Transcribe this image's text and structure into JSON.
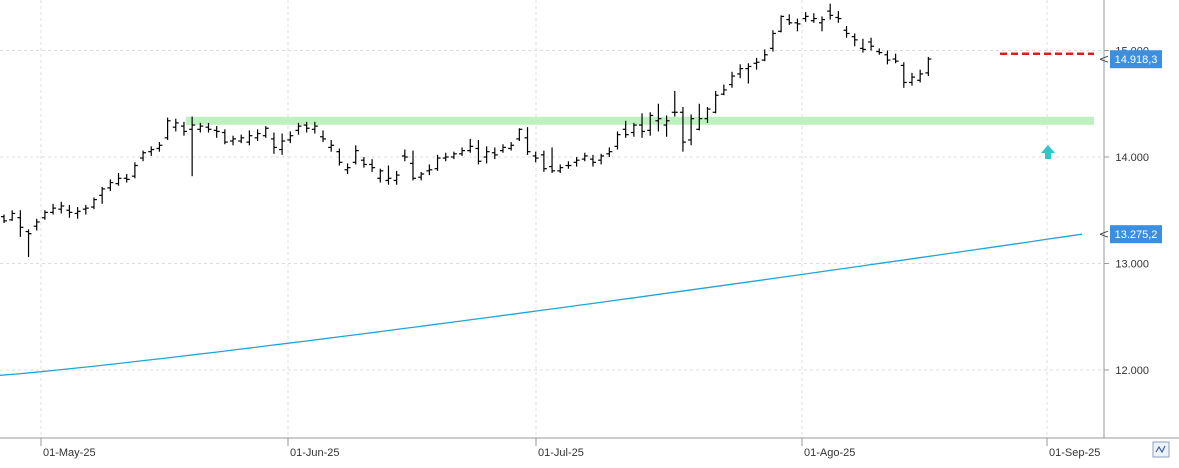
{
  "chart_data": {
    "type": "ohlc",
    "title": "",
    "xlabel": "",
    "ylabel": "",
    "ylim": [
      11300,
      15600
    ],
    "grid": true,
    "x_tick_labels": [
      "01-May-25",
      "01-Jun-25",
      "01-Jul-25",
      "01-Ago-25",
      "01-Sep-25"
    ],
    "y_tick_values": [
      12000,
      13000,
      14000,
      15000
    ],
    "y_tick_labels": [
      "12.000",
      "13.000",
      "14.000",
      "15.000"
    ],
    "price_badges": [
      {
        "label": "14.918,3",
        "value": 14918.3,
        "color": "#3b8fe0"
      },
      {
        "label": "13.275,2",
        "value": 13275.2,
        "color": "#3b8fe0"
      }
    ],
    "series": [
      {
        "type": "ohlc",
        "color": "#000000",
        "bars": [
          [
            13440,
            13460,
            13380,
            13400
          ],
          [
            13410,
            13500,
            13400,
            13470
          ],
          [
            13430,
            13500,
            13250,
            13340
          ],
          [
            13300,
            13320,
            13060,
            13280
          ],
          [
            13350,
            13420,
            13310,
            13390
          ],
          [
            13430,
            13500,
            13410,
            13480
          ],
          [
            13480,
            13560,
            13460,
            13520
          ],
          [
            13510,
            13580,
            13470,
            13540
          ],
          [
            13500,
            13550,
            13430,
            13480
          ],
          [
            13470,
            13530,
            13420,
            13490
          ],
          [
            13510,
            13550,
            13460,
            13520
          ],
          [
            13530,
            13620,
            13510,
            13600
          ],
          [
            13640,
            13720,
            13560,
            13700
          ],
          [
            13710,
            13790,
            13680,
            13760
          ],
          [
            13750,
            13850,
            13730,
            13800
          ],
          [
            13800,
            13840,
            13760,
            13790
          ],
          [
            13820,
            13950,
            13800,
            13920
          ],
          [
            13990,
            14060,
            13960,
            14040
          ],
          [
            14050,
            14100,
            14010,
            14070
          ],
          [
            14080,
            14140,
            14050,
            14110
          ],
          [
            14180,
            14370,
            14160,
            14340
          ],
          [
            14280,
            14360,
            14240,
            14320
          ],
          [
            14290,
            14330,
            14200,
            14240
          ],
          [
            14260,
            14380,
            13820,
            14300
          ],
          [
            14260,
            14320,
            14230,
            14290
          ],
          [
            14280,
            14320,
            14230,
            14260
          ],
          [
            14250,
            14290,
            14180,
            14240
          ],
          [
            14230,
            14260,
            14120,
            14140
          ],
          [
            14150,
            14200,
            14110,
            14170
          ],
          [
            14150,
            14210,
            14130,
            14180
          ],
          [
            14140,
            14250,
            14110,
            14200
          ],
          [
            14180,
            14260,
            14150,
            14220
          ],
          [
            14200,
            14290,
            14180,
            14270
          ],
          [
            14170,
            14230,
            14030,
            14090
          ],
          [
            14070,
            14220,
            14020,
            14150
          ],
          [
            14160,
            14240,
            14130,
            14200
          ],
          [
            14250,
            14320,
            14210,
            14290
          ],
          [
            14300,
            14330,
            14230,
            14270
          ],
          [
            14260,
            14330,
            14220,
            14290
          ],
          [
            14190,
            14250,
            14140,
            14170
          ],
          [
            14090,
            14160,
            14050,
            14110
          ],
          [
            14050,
            14080,
            13920,
            13950
          ],
          [
            13880,
            13940,
            13840,
            13900
          ],
          [
            13950,
            14110,
            13930,
            14060
          ],
          [
            13970,
            14000,
            13900,
            13930
          ],
          [
            13930,
            13980,
            13860,
            13900
          ],
          [
            13800,
            13890,
            13760,
            13870
          ],
          [
            13780,
            13920,
            13740,
            13800
          ],
          [
            13780,
            13870,
            13740,
            13830
          ],
          [
            14010,
            14070,
            13960,
            14000
          ],
          [
            13940,
            14060,
            13780,
            13800
          ],
          [
            13810,
            13860,
            13780,
            13840
          ],
          [
            13870,
            13930,
            13830,
            13880
          ],
          [
            13890,
            14020,
            13870,
            13990
          ],
          [
            13990,
            14040,
            13960,
            14000
          ],
          [
            14000,
            14050,
            13980,
            14030
          ],
          [
            14030,
            14090,
            14010,
            14060
          ],
          [
            14060,
            14170,
            14040,
            14100
          ],
          [
            14080,
            14160,
            13930,
            13960
          ],
          [
            14000,
            14100,
            13940,
            14050
          ],
          [
            14040,
            14090,
            13980,
            14020
          ],
          [
            14060,
            14120,
            14040,
            14090
          ],
          [
            14080,
            14140,
            14060,
            14110
          ],
          [
            14170,
            14270,
            14150,
            14260
          ],
          [
            14180,
            14280,
            14020,
            14050
          ],
          [
            14010,
            14050,
            13950,
            13990
          ],
          [
            14020,
            14060,
            13860,
            13890
          ],
          [
            13910,
            14090,
            13850,
            13870
          ],
          [
            13870,
            13930,
            13850,
            13900
          ],
          [
            13920,
            13960,
            13890,
            13920
          ],
          [
            13950,
            14000,
            13910,
            13970
          ],
          [
            13980,
            14040,
            13960,
            14010
          ],
          [
            13980,
            14020,
            13910,
            13950
          ],
          [
            13970,
            14030,
            13930,
            14010
          ],
          [
            14030,
            14090,
            14000,
            14050
          ],
          [
            14100,
            14240,
            14070,
            14210
          ],
          [
            14260,
            14340,
            14180,
            14210
          ],
          [
            14230,
            14320,
            14190,
            14300
          ],
          [
            14300,
            14410,
            14180,
            14240
          ],
          [
            14250,
            14420,
            14200,
            14390
          ],
          [
            14340,
            14500,
            14240,
            14360
          ],
          [
            14300,
            14390,
            14190,
            14340
          ],
          [
            14420,
            14620,
            14380,
            14420
          ],
          [
            14420,
            14470,
            14050,
            14140
          ],
          [
            14160,
            14400,
            14110,
            14360
          ],
          [
            14260,
            14500,
            14250,
            14360
          ],
          [
            14360,
            14470,
            14320,
            14450
          ],
          [
            14420,
            14620,
            14410,
            14580
          ],
          [
            14590,
            14680,
            14580,
            14630
          ],
          [
            14680,
            14800,
            14650,
            14760
          ],
          [
            14780,
            14870,
            14740,
            14830
          ],
          [
            14830,
            14880,
            14690,
            14850
          ],
          [
            14880,
            14930,
            14820,
            14890
          ],
          [
            14910,
            15010,
            14900,
            14960
          ],
          [
            15020,
            15190,
            14990,
            15160
          ],
          [
            15180,
            15330,
            15170,
            15320
          ],
          [
            15290,
            15340,
            15240,
            15260
          ],
          [
            15260,
            15300,
            15180,
            15250
          ],
          [
            15300,
            15360,
            15270,
            15320
          ],
          [
            15280,
            15350,
            15260,
            15300
          ],
          [
            15260,
            15320,
            15180,
            15290
          ],
          [
            15370,
            15440,
            15290,
            15330
          ],
          [
            15310,
            15370,
            15260,
            15300
          ],
          [
            15190,
            15230,
            15120,
            15160
          ],
          [
            15130,
            15160,
            15040,
            15100
          ],
          [
            15020,
            15110,
            14980,
            15010
          ],
          [
            15080,
            15120,
            15000,
            15040
          ],
          [
            14990,
            15020,
            14960,
            14980
          ],
          [
            14960,
            15000,
            14870,
            14910
          ],
          [
            14920,
            14970,
            14880,
            14900
          ],
          [
            14860,
            14890,
            14650,
            14700
          ],
          [
            14700,
            14790,
            14670,
            14750
          ],
          [
            14720,
            14820,
            14700,
            14780
          ],
          [
            14790,
            14940,
            14760,
            14920
          ]
        ]
      },
      {
        "type": "moving-average",
        "color": "#1fa6d6",
        "start": 11950,
        "end": 13275.2
      }
    ],
    "annotations": [
      {
        "type": "support-band",
        "value": 14340,
        "color": "#bdf2bf"
      },
      {
        "type": "resistance-line",
        "value": 14970,
        "color": "#e01b1b",
        "style": "dashed"
      },
      {
        "type": "up-arrow",
        "color": "#2ec7c9"
      }
    ]
  }
}
